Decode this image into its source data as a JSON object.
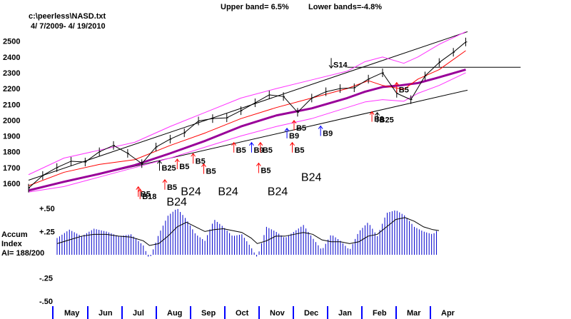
{
  "header": {
    "file": "c:\\peerless\\NASD.txt",
    "date_range": "4/ 7/2009- 4/ 19/2010",
    "upper_band": "Upper band= 6.5%",
    "lower_band": "Lower bands=-4.8%"
  },
  "colors": {
    "price": "#000000",
    "ma_short": "#ff0000",
    "ma_long": "#990099",
    "bands": "#ff33ff",
    "channel": "#000000",
    "accum": "#0000cc",
    "accum_ma": "#000000",
    "buy_red": "#ff0000",
    "buy_blue": "#0000ff",
    "sell": "#000000",
    "month_tick": "#0000ff"
  },
  "chart_data": [
    {
      "type": "line",
      "title": "NASD",
      "ylabel": "",
      "ylim": [
        1550,
        2580
      ],
      "yticks": [
        "2500",
        "2400",
        "2300",
        "2200",
        "2100",
        "2000",
        "1900",
        "1800",
        "1700",
        "1600"
      ],
      "ytick_values": [
        2500,
        2400,
        2300,
        2200,
        2100,
        2000,
        1900,
        1800,
        1700,
        1600
      ],
      "xlim": [
        0,
        12.4
      ],
      "xticks": [
        "May",
        "Jun",
        "Jul",
        "Aug",
        "Sep",
        "Oct",
        "Nov",
        "Dec",
        "Jan",
        "Feb",
        "Mar",
        "Apr"
      ],
      "series": [
        {
          "name": "NASD close",
          "x": [
            0.0,
            0.4,
            0.8,
            1.2,
            1.6,
            2.0,
            2.4,
            2.8,
            3.2,
            3.6,
            4.0,
            4.4,
            4.8,
            5.2,
            5.6,
            6.0,
            6.4,
            6.8,
            7.2,
            7.6,
            8.0,
            8.4,
            8.8,
            9.2,
            9.6,
            10.0,
            10.4,
            10.8,
            11.2,
            11.6,
            12.0,
            12.35
          ],
          "values": [
            1570,
            1650,
            1700,
            1740,
            1735,
            1800,
            1840,
            1790,
            1725,
            1830,
            1880,
            1920,
            1995,
            2010,
            2015,
            2060,
            2110,
            2160,
            2150,
            2050,
            2140,
            2180,
            2200,
            2205,
            2260,
            2300,
            2170,
            2130,
            2280,
            2365,
            2430,
            2495
          ]
        },
        {
          "name": "short MA",
          "x": [
            0.0,
            1.0,
            2.0,
            3.0,
            4.0,
            5.0,
            6.0,
            7.0,
            8.0,
            9.0,
            9.6,
            10.0,
            10.6,
            11.0,
            11.6,
            12.35
          ],
          "values": [
            1585,
            1670,
            1720,
            1750,
            1840,
            1920,
            2010,
            2080,
            2140,
            2200,
            2250,
            2220,
            2195,
            2260,
            2320,
            2440
          ]
        },
        {
          "name": "long MA",
          "x": [
            0.0,
            1.0,
            2.0,
            3.0,
            4.0,
            5.0,
            6.0,
            7.0,
            8.0,
            9.0,
            9.5,
            10.0,
            10.5,
            11.0,
            11.5,
            12.35
          ],
          "values": [
            1555,
            1610,
            1660,
            1715,
            1790,
            1870,
            1960,
            2030,
            2075,
            2140,
            2180,
            2210,
            2220,
            2235,
            2265,
            2320
          ]
        },
        {
          "name": "upper band",
          "x": [
            0.0,
            1.0,
            2.0,
            3.0,
            4.0,
            5.0,
            6.0,
            7.0,
            8.0,
            9.0,
            9.5,
            10.0,
            10.6,
            11.0,
            11.6,
            12.35
          ],
          "values": [
            1655,
            1760,
            1810,
            1860,
            1960,
            2050,
            2140,
            2200,
            2255,
            2310,
            2370,
            2400,
            2360,
            2400,
            2480,
            2560
          ]
        },
        {
          "name": "lower band",
          "x": [
            0.0,
            1.0,
            2.0,
            3.0,
            4.0,
            5.0,
            6.0,
            7.0,
            8.0,
            9.0,
            9.5,
            10.0,
            10.6,
            11.0,
            11.6,
            12.35
          ],
          "values": [
            1545,
            1580,
            1640,
            1700,
            1760,
            1830,
            1900,
            1960,
            2010,
            2080,
            2115,
            2130,
            2120,
            2170,
            2220,
            2300
          ]
        }
      ],
      "lines": [
        {
          "name": "upper channel",
          "from": [
            0.0,
            1620
          ],
          "to": [
            12.4,
            2560
          ]
        },
        {
          "name": "lower channel",
          "from": [
            0.0,
            1555
          ],
          "to": [
            12.4,
            2190
          ]
        },
        {
          "name": "resistance",
          "from": [
            9.0,
            2335
          ],
          "to": [
            13.9,
            2335
          ]
        }
      ],
      "signals": [
        {
          "label": "B5",
          "x": 3.1,
          "y": 1515,
          "color": "red"
        },
        {
          "label": "B18",
          "x": 3.15,
          "y": 1500,
          "color": "red"
        },
        {
          "label": "B5",
          "x": 3.85,
          "y": 1560,
          "color": "red"
        },
        {
          "label": "B25",
          "x": 3.7,
          "y": 1680,
          "color": "black"
        },
        {
          "label": "B5",
          "x": 4.2,
          "y": 1690,
          "color": "red"
        },
        {
          "label": "B5",
          "x": 4.65,
          "y": 1725,
          "color": "red"
        },
        {
          "label": "B5",
          "x": 4.95,
          "y": 1660,
          "color": "red"
        },
        {
          "label": "B5",
          "x": 5.8,
          "y": 1795,
          "color": "red"
        },
        {
          "label": "B9",
          "x": 6.3,
          "y": 1795,
          "color": "blue"
        },
        {
          "label": "B5",
          "x": 6.55,
          "y": 1795,
          "color": "red"
        },
        {
          "label": "B5",
          "x": 6.5,
          "y": 1665,
          "color": "red"
        },
        {
          "label": "B9",
          "x": 7.3,
          "y": 1885,
          "color": "blue"
        },
        {
          "label": "B5",
          "x": 7.5,
          "y": 1935,
          "color": "red"
        },
        {
          "label": "B5",
          "x": 7.45,
          "y": 1795,
          "color": "red"
        },
        {
          "label": "B9",
          "x": 8.25,
          "y": 1900,
          "color": "blue"
        },
        {
          "label": "B8",
          "x": 9.7,
          "y": 1990,
          "color": "red"
        },
        {
          "label": "B25",
          "x": 9.85,
          "y": 1985,
          "color": "black"
        },
        {
          "label": "B5",
          "x": 10.4,
          "y": 2175,
          "color": "red"
        },
        {
          "label": "S14",
          "x": 8.55,
          "y": 2330,
          "color": "black"
        }
      ],
      "annotations": [
        {
          "label": "B24",
          "x": 4.3,
          "y": 1525
        },
        {
          "label": "B24",
          "x": 5.35,
          "y": 1525
        },
        {
          "label": "B24",
          "x": 6.75,
          "y": 1525
        },
        {
          "label": "B24",
          "x": 7.7,
          "y": 1615
        },
        {
          "label": "B24",
          "x": 3.9,
          "y": 1460
        }
      ]
    },
    {
      "type": "bar",
      "title": "Accum Index",
      "ylim": [
        -0.56,
        0.56
      ],
      "yticks": [
        "+.50",
        "+.25",
        "-.25",
        "-.50"
      ],
      "ytick_values": [
        0.5,
        0.25,
        -0.25,
        -0.5
      ],
      "x": [
        0.0,
        0.4,
        0.8,
        1.2,
        1.6,
        2.0,
        2.4,
        2.8,
        3.0,
        3.3,
        3.6,
        3.9,
        4.2,
        4.5,
        4.8,
        5.1,
        5.4,
        5.7,
        6.0,
        6.3,
        6.5,
        6.8,
        7.1,
        7.4,
        7.7,
        8.0,
        8.3,
        8.6,
        8.9,
        9.2,
        9.5,
        9.8,
        10.1,
        10.4,
        10.7,
        11.0,
        11.3,
        11.6,
        11.9,
        12.2,
        12.4
      ],
      "values": [
        0.18,
        0.27,
        0.2,
        0.28,
        0.25,
        0.2,
        0.22,
        0.1,
        -0.05,
        0.22,
        0.42,
        0.5,
        0.38,
        0.22,
        0.15,
        0.38,
        0.3,
        0.2,
        0.22,
        0.08,
        -0.03,
        0.3,
        0.25,
        0.18,
        0.25,
        0.32,
        0.18,
        0.05,
        0.22,
        0.15,
        0.05,
        0.25,
        0.35,
        0.2,
        0.45,
        0.48,
        0.42,
        0.3,
        0.25,
        0.22,
        0.28
      ],
      "ma": [
        0.12,
        0.16,
        0.2,
        0.22,
        0.22,
        0.2,
        0.19,
        0.15,
        0.1,
        0.12,
        0.2,
        0.3,
        0.35,
        0.3,
        0.25,
        0.27,
        0.28,
        0.26,
        0.24,
        0.18,
        0.12,
        0.15,
        0.2,
        0.2,
        0.22,
        0.24,
        0.22,
        0.16,
        0.14,
        0.14,
        0.12,
        0.14,
        0.2,
        0.22,
        0.3,
        0.38,
        0.4,
        0.36,
        0.3,
        0.27,
        0.26
      ],
      "ai_label": "AI= 188/200"
    }
  ],
  "axis": {
    "accum_label_line1": "Accum",
    "accum_label_line2": "Index"
  }
}
